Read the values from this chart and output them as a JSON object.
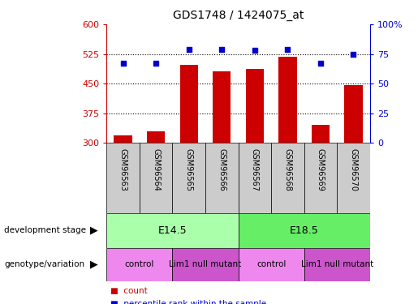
{
  "title": "GDS1748 / 1424075_at",
  "samples": [
    "GSM96563",
    "GSM96564",
    "GSM96565",
    "GSM96566",
    "GSM96567",
    "GSM96568",
    "GSM96569",
    "GSM96570"
  ],
  "bar_values": [
    320,
    330,
    497,
    482,
    487,
    518,
    345,
    447
  ],
  "percentile_values": [
    67,
    67,
    79,
    79,
    78,
    79,
    67,
    75
  ],
  "ylim_left": [
    300,
    600
  ],
  "ylim_right": [
    0,
    100
  ],
  "yticks_left": [
    300,
    375,
    450,
    525,
    600
  ],
  "yticks_right": [
    0,
    25,
    50,
    75,
    100
  ],
  "bar_color": "#cc0000",
  "dot_color": "#0000cc",
  "bar_width": 0.55,
  "dev_configs": [
    {
      "label": "E14.5",
      "start": 0,
      "end": 3,
      "color": "#aaffaa"
    },
    {
      "label": "E18.5",
      "start": 4,
      "end": 7,
      "color": "#66ee66"
    }
  ],
  "geno_configs": [
    {
      "label": "control",
      "start": 0,
      "end": 1,
      "color": "#ee88ee"
    },
    {
      "label": "Lim1 null mutant",
      "start": 2,
      "end": 3,
      "color": "#cc55cc"
    },
    {
      "label": "control",
      "start": 4,
      "end": 5,
      "color": "#ee88ee"
    },
    {
      "label": "Lim1 null mutant",
      "start": 6,
      "end": 7,
      "color": "#cc55cc"
    }
  ],
  "sample_box_color": "#cccccc",
  "left_axis_color": "#cc0000",
  "right_axis_color": "#0000cc",
  "grid_color": "#000000",
  "legend_count_color": "#cc0000",
  "legend_pct_color": "#0000cc",
  "row_label_dev": "development stage",
  "row_label_geno": "genotype/variation",
  "legend_count_text": "count",
  "legend_pct_text": "percentile rank within the sample",
  "hgrid_vals": [
    375,
    450,
    525
  ]
}
